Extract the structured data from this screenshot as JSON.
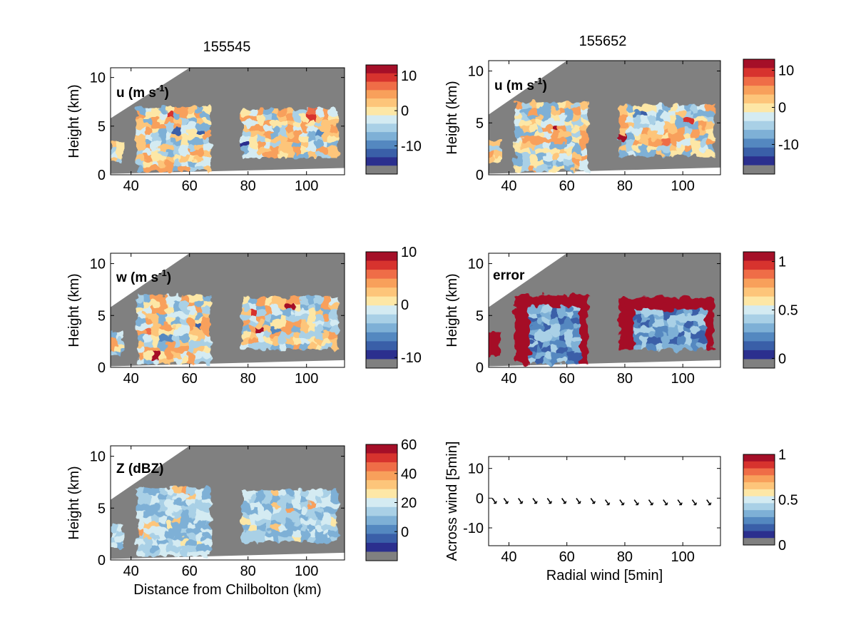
{
  "figure": {
    "column_titles": [
      "155545",
      "155652"
    ]
  },
  "colors": {
    "background_gray": "#808080",
    "colormap": [
      "#2b2f8e",
      "#3a5fa8",
      "#5488c0",
      "#7eb0d6",
      "#a9d0e6",
      "#d4ebf2",
      "#fde7a6",
      "#fdc57a",
      "#f8a05b",
      "#ef6d47",
      "#d7332e",
      "#a50f28"
    ]
  },
  "chart_data": [
    {
      "id": "u_155545",
      "type": "heatmap",
      "title": "155545",
      "annotation": "u (m s",
      "annotation_sup": "-1",
      "ylabel": "Height (km)",
      "xlabel": "",
      "xlim": [
        33,
        113
      ],
      "ylim": [
        0,
        11
      ],
      "xticks": [
        "40",
        "60",
        "80",
        "100"
      ],
      "yticks": [
        "0",
        "5",
        "10"
      ],
      "colorbar": {
        "ticks": [
          "10",
          "0",
          "-10"
        ],
        "tick_values": [
          10,
          0,
          -10
        ],
        "range": [
          -18,
          13
        ]
      }
    },
    {
      "id": "u_155652",
      "type": "heatmap",
      "title": "155652",
      "annotation": "u (m s",
      "annotation_sup": "-1",
      "ylabel": "Height (km)",
      "xlabel": "",
      "xlim": [
        33,
        113
      ],
      "ylim": [
        0,
        11
      ],
      "xticks": [
        "40",
        "60",
        "80",
        "100"
      ],
      "yticks": [
        "0",
        "5",
        "10"
      ],
      "colorbar": {
        "ticks": [
          "10",
          "0",
          "-10"
        ],
        "tick_values": [
          10,
          0,
          -10
        ],
        "range": [
          -18,
          13
        ]
      }
    },
    {
      "id": "w_155545",
      "type": "heatmap",
      "title": "",
      "annotation": "w (m s",
      "annotation_sup": "-1",
      "ylabel": "Height (km)",
      "xlabel": "",
      "xlim": [
        33,
        113
      ],
      "ylim": [
        0,
        11
      ],
      "xticks": [
        "40",
        "60",
        "80",
        "100"
      ],
      "yticks": [
        "0",
        "5",
        "10"
      ],
      "colorbar": {
        "ticks": [
          "10",
          "0",
          "-10"
        ],
        "tick_values": [
          10,
          0,
          -10
        ],
        "range": [
          -12,
          10
        ]
      }
    },
    {
      "id": "error_155652",
      "type": "heatmap",
      "title": "",
      "annotation": "error",
      "annotation_sup": "",
      "ylabel": "Height (km)",
      "xlabel": "",
      "xlim": [
        33,
        113
      ],
      "ylim": [
        0,
        11
      ],
      "xticks": [
        "40",
        "60",
        "80",
        "100"
      ],
      "yticks": [
        "0",
        "5",
        "10"
      ],
      "colorbar": {
        "ticks": [
          "1",
          "0.5",
          "0"
        ],
        "tick_values": [
          1,
          0.5,
          0
        ],
        "range": [
          -0.1,
          1.1
        ]
      }
    },
    {
      "id": "Z_155545",
      "type": "heatmap",
      "title": "",
      "annotation": "Z (dBZ)",
      "annotation_sup": "",
      "ylabel": "Height (km)",
      "xlabel": "Distance from Chilbolton (km)",
      "xlim": [
        33,
        113
      ],
      "ylim": [
        0,
        11
      ],
      "xticks": [
        "40",
        "60",
        "80",
        "100"
      ],
      "yticks": [
        "0",
        "5",
        "10"
      ],
      "colorbar": {
        "ticks": [
          "60",
          "40",
          "20",
          "0"
        ],
        "tick_values": [
          60,
          40,
          20,
          0
        ],
        "range": [
          -20,
          60
        ]
      }
    },
    {
      "id": "wind_vectors",
      "type": "scatter",
      "title": "",
      "annotation": "",
      "annotation_sup": "",
      "ylabel": "Across wind [5min]",
      "xlabel": "Radial wind [5min]",
      "xlim": [
        33,
        113
      ],
      "ylim": [
        -16,
        14
      ],
      "xticks": [
        "40",
        "60",
        "80",
        "100"
      ],
      "yticks": [
        "10",
        "0",
        "-10"
      ],
      "x": [
        35,
        39,
        44,
        49,
        54,
        59,
        64,
        69,
        74,
        79,
        84,
        89,
        94,
        99,
        104,
        109
      ],
      "y": [
        -1,
        -1,
        -1,
        -1,
        -1,
        -1,
        -1,
        -1,
        -1.5,
        -1.5,
        -1.5,
        -1.5,
        -1.5,
        -1.5,
        -1.5,
        -1.5
      ],
      "colorbar": {
        "ticks": [
          "1",
          "0.5",
          "0"
        ],
        "tick_values": [
          1,
          0.5,
          0
        ],
        "range": [
          0,
          1
        ]
      }
    }
  ]
}
